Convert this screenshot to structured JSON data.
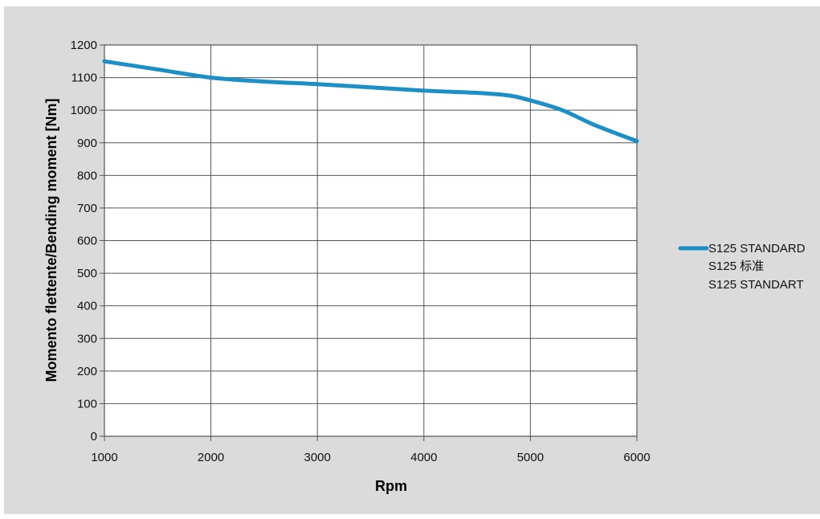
{
  "chart_data": {
    "type": "line",
    "xlabel": "Rpm",
    "ylabel": "Momento flettente/Bending moment [Nm]",
    "xlim": [
      1000,
      6000
    ],
    "ylim": [
      0,
      1200
    ],
    "x_ticks": [
      "1000",
      "2000",
      "3000",
      "4000",
      "5000",
      "6000"
    ],
    "y_ticks": [
      "0",
      "100",
      "200",
      "300",
      "400",
      "500",
      "600",
      "700",
      "800",
      "900",
      "1000",
      "1100",
      "1200"
    ],
    "grid": true,
    "legend_position": "right",
    "series": [
      {
        "name": "S125 STANDARD",
        "color": "#1b8fc6",
        "x": [
          1000,
          1500,
          2000,
          2500,
          3000,
          3500,
          4000,
          4500,
          4800,
          5000,
          5300,
          5600,
          6000
        ],
        "y": [
          1150,
          1125,
          1100,
          1088,
          1080,
          1070,
          1060,
          1053,
          1045,
          1030,
          1000,
          955,
          905
        ]
      }
    ],
    "legend_labels": [
      "S125 STANDARD",
      "S125 标准",
      "S125 STANDART"
    ]
  }
}
